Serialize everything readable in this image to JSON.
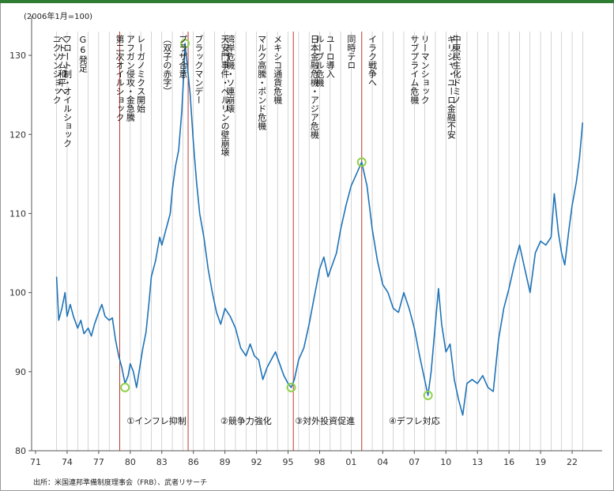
{
  "unit_note": "(2006年1月=100)",
  "source": "出所：米国連邦準備制度理事会（FRB）、武者リサーチ",
  "chart_data": {
    "type": "line",
    "ylim": [
      80,
      135
    ],
    "yticks": [
      80,
      90,
      100,
      110,
      120,
      130
    ],
    "xlim": [
      1971,
      2023.5
    ],
    "xticks": [
      {
        "label": "71",
        "x": 1971
      },
      {
        "label": "74",
        "x": 1974
      },
      {
        "label": "77",
        "x": 1977
      },
      {
        "label": "80",
        "x": 1980
      },
      {
        "label": "83",
        "x": 1983
      },
      {
        "label": "86",
        "x": 1986
      },
      {
        "label": "89",
        "x": 1989
      },
      {
        "label": "92",
        "x": 1992
      },
      {
        "label": "95",
        "x": 1995
      },
      {
        "label": "98",
        "x": 1998
      },
      {
        "label": "01",
        "x": 2001
      },
      {
        "label": "04",
        "x": 2004
      },
      {
        "label": "07",
        "x": 2007
      },
      {
        "label": "10",
        "x": 2010
      },
      {
        "label": "13",
        "x": 2013
      },
      {
        "label": "16",
        "x": 2016
      },
      {
        "label": "19",
        "x": 2019
      },
      {
        "label": "22",
        "x": 2022
      }
    ],
    "grid_x_start": 1973,
    "grid_x_end": 2023,
    "series": [
      {
        "points": [
          [
            1973.0,
            102
          ],
          [
            1973.2,
            96.5
          ],
          [
            1973.5,
            98
          ],
          [
            1973.8,
            100
          ],
          [
            1974.0,
            97
          ],
          [
            1974.3,
            98.5
          ],
          [
            1974.6,
            97
          ],
          [
            1975.0,
            95.5
          ],
          [
            1975.3,
            96.5
          ],
          [
            1975.6,
            94.8
          ],
          [
            1976.0,
            95.5
          ],
          [
            1976.3,
            94.5
          ],
          [
            1976.6,
            96
          ],
          [
            1977.0,
            97.5
          ],
          [
            1977.3,
            98.5
          ],
          [
            1977.6,
            97
          ],
          [
            1978.0,
            96.5
          ],
          [
            1978.3,
            96.8
          ],
          [
            1978.6,
            94
          ],
          [
            1978.9,
            92
          ],
          [
            1979.2,
            90.5
          ],
          [
            1979.5,
            88.5
          ],
          [
            1979.8,
            89.5
          ],
          [
            1980.0,
            91
          ],
          [
            1980.3,
            90
          ],
          [
            1980.6,
            88
          ],
          [
            1980.9,
            90.5
          ],
          [
            1981.2,
            93
          ],
          [
            1981.5,
            95
          ],
          [
            1981.8,
            99
          ],
          [
            1982.0,
            102
          ],
          [
            1982.4,
            104
          ],
          [
            1982.8,
            107
          ],
          [
            1983.0,
            106
          ],
          [
            1983.4,
            108
          ],
          [
            1983.8,
            110
          ],
          [
            1984.0,
            113
          ],
          [
            1984.3,
            116
          ],
          [
            1984.6,
            118
          ],
          [
            1984.9,
            123
          ],
          [
            1985.1,
            128
          ],
          [
            1985.2,
            131.5
          ],
          [
            1985.4,
            129
          ],
          [
            1985.7,
            125
          ],
          [
            1986.0,
            119
          ],
          [
            1986.3,
            114
          ],
          [
            1986.6,
            110
          ],
          [
            1987.0,
            107
          ],
          [
            1987.4,
            103
          ],
          [
            1987.8,
            100
          ],
          [
            1988.2,
            97.5
          ],
          [
            1988.6,
            96
          ],
          [
            1989.0,
            98
          ],
          [
            1989.5,
            97
          ],
          [
            1990.0,
            95.5
          ],
          [
            1990.5,
            93
          ],
          [
            1991.0,
            92
          ],
          [
            1991.4,
            93.5
          ],
          [
            1991.8,
            92
          ],
          [
            1992.2,
            91.5
          ],
          [
            1992.6,
            89
          ],
          [
            1993.0,
            90.5
          ],
          [
            1993.4,
            91.5
          ],
          [
            1993.8,
            92.5
          ],
          [
            1994.2,
            91
          ],
          [
            1994.6,
            89.5
          ],
          [
            1995.0,
            88.5
          ],
          [
            1995.3,
            88
          ],
          [
            1995.6,
            89
          ],
          [
            1996.0,
            91.5
          ],
          [
            1996.5,
            93
          ],
          [
            1997.0,
            96
          ],
          [
            1997.5,
            99.5
          ],
          [
            1998.0,
            103
          ],
          [
            1998.4,
            104.5
          ],
          [
            1998.8,
            102
          ],
          [
            1999.2,
            103.5
          ],
          [
            1999.6,
            105
          ],
          [
            2000.0,
            108
          ],
          [
            2000.5,
            111
          ],
          [
            2001.0,
            113.5
          ],
          [
            2001.5,
            115
          ],
          [
            2002.0,
            116.5
          ],
          [
            2002.5,
            113.5
          ],
          [
            2003.0,
            108
          ],
          [
            2003.5,
            104
          ],
          [
            2004.0,
            101
          ],
          [
            2004.5,
            100
          ],
          [
            2005.0,
            98
          ],
          [
            2005.5,
            97.5
          ],
          [
            2006.0,
            100
          ],
          [
            2006.5,
            98
          ],
          [
            2007.0,
            95.5
          ],
          [
            2007.5,
            92
          ],
          [
            2007.9,
            89.5
          ],
          [
            2008.3,
            87
          ],
          [
            2008.6,
            90
          ],
          [
            2009.0,
            96
          ],
          [
            2009.3,
            100.5
          ],
          [
            2009.6,
            96
          ],
          [
            2010.0,
            92.5
          ],
          [
            2010.4,
            93.5
          ],
          [
            2010.8,
            89
          ],
          [
            2011.2,
            86.5
          ],
          [
            2011.6,
            84.5
          ],
          [
            2012.0,
            88.5
          ],
          [
            2012.5,
            89
          ],
          [
            2013.0,
            88.5
          ],
          [
            2013.5,
            89.5
          ],
          [
            2014.0,
            88
          ],
          [
            2014.5,
            87.5
          ],
          [
            2015.0,
            94
          ],
          [
            2015.5,
            98
          ],
          [
            2016.0,
            100.5
          ],
          [
            2016.5,
            103.5
          ],
          [
            2017.0,
            106
          ],
          [
            2017.5,
            103
          ],
          [
            2018.0,
            100
          ],
          [
            2018.5,
            105
          ],
          [
            2019.0,
            106.5
          ],
          [
            2019.5,
            106
          ],
          [
            2020.0,
            107
          ],
          [
            2020.3,
            112.5
          ],
          [
            2020.7,
            107.5
          ],
          [
            2021.0,
            105
          ],
          [
            2021.3,
            103.5
          ],
          [
            2021.7,
            108
          ],
          [
            2022.0,
            111
          ],
          [
            2022.4,
            114
          ],
          [
            2022.7,
            117
          ],
          [
            2023.0,
            121.5
          ]
        ]
      }
    ],
    "event_lines": [
      {
        "x": 1973.0,
        "label": "ニクソンショック"
      },
      {
        "x": 1973.5,
        "label": "ベトナム和平へ"
      },
      {
        "x": 1974.0,
        "label": "フロート制・オイルショック"
      },
      {
        "x": 1975.5,
        "label": "G6発足"
      },
      {
        "x": 1979.0,
        "label": "第二次オイルショック"
      },
      {
        "x": 1980.0,
        "label": "アフガン侵攻・金急騰"
      },
      {
        "x": 1981.0,
        "label": "レーガノミクス開始"
      },
      {
        "x": 1983.5,
        "label": "（双子の赤字）"
      },
      {
        "x": 1985.0,
        "label": "プラザ合意"
      },
      {
        "x": 1986.5,
        "label": "ブラックマンデー"
      },
      {
        "x": 1989.0,
        "label": "天安門事件・ベルリンの壁崩壊"
      },
      {
        "x": 1989.5,
        "label": "湾岸危機・ソ連崩壊"
      },
      {
        "x": 1992.5,
        "label": "マルク高騰・ポンド危機"
      },
      {
        "x": 1994.0,
        "label": "メキシコ通貨危機"
      },
      {
        "x": 1997.5,
        "label": "日本金融危機・アジア危機"
      },
      {
        "x": 1998.0,
        "label": "ルーブル危機"
      },
      {
        "x": 1999.0,
        "label": "ユーロ導入"
      },
      {
        "x": 2001.0,
        "label": "同時テロ"
      },
      {
        "x": 2003.0,
        "label": "イラク戦争へ"
      },
      {
        "x": 2007.0,
        "label": "サブプライム危機"
      },
      {
        "x": 2008.0,
        "label": "リーマンショック"
      },
      {
        "x": 2010.5,
        "label": "ギリシャ・ユーロ金融不安"
      },
      {
        "x": 2011.0,
        "label": "中東民主化ドミノ"
      }
    ],
    "red_lines": [
      1979.0,
      1985.5,
      1995.5,
      2002.0
    ],
    "markers": [
      {
        "x": 1979.5,
        "y": 88
      },
      {
        "x": 1985.2,
        "y": 131.5
      },
      {
        "x": 1995.3,
        "y": 88
      },
      {
        "x": 2002.0,
        "y": 116.5
      },
      {
        "x": 2008.3,
        "y": 87
      }
    ],
    "phase_labels": [
      {
        "label": "①インフレ抑制",
        "x": 1982.5
      },
      {
        "label": "②競争力強化",
        "x": 1991.0
      },
      {
        "label": "③対外投資促進",
        "x": 1998.5
      },
      {
        "label": "④デフレ対応",
        "x": 2007.0
      }
    ],
    "colors": {
      "line": "#1f73b7",
      "marker": "#8ed14b",
      "red": "#c0392b",
      "grid": "#b8b8b8",
      "axis": "#555555"
    }
  }
}
